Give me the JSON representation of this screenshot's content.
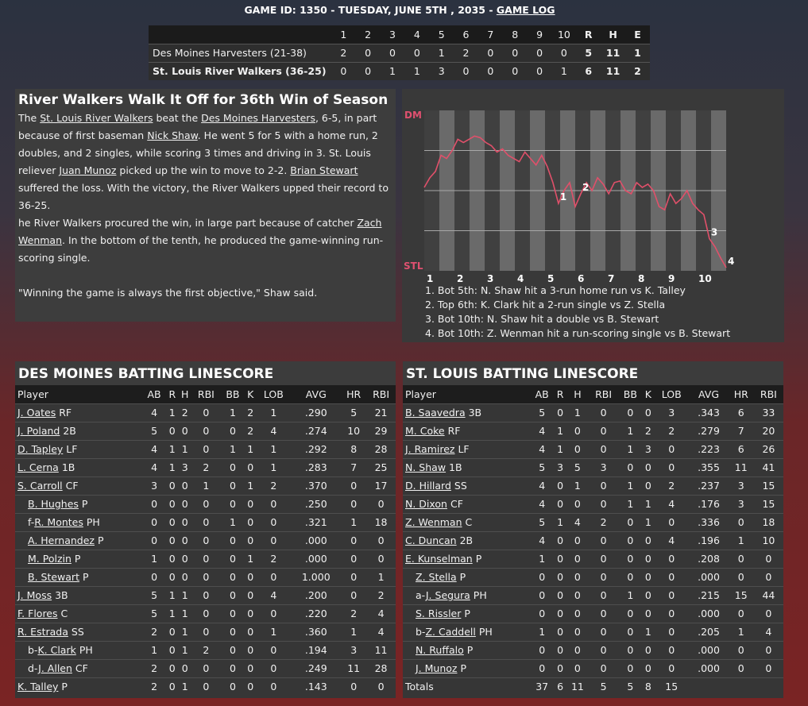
{
  "header": {
    "title": "GAME ID: 1350 - TUESDAY, JUNE 5TH , 2035 - ",
    "log_link": "GAME LOG"
  },
  "linescore": {
    "innings": [
      "1",
      "2",
      "3",
      "4",
      "5",
      "6",
      "7",
      "8",
      "9",
      "10"
    ],
    "totals_headers": [
      "R",
      "H",
      "E"
    ],
    "teams": [
      {
        "name": "Des Moines Harvesters (21-38)",
        "bold": false,
        "innings": [
          "2",
          "0",
          "0",
          "0",
          "1",
          "2",
          "0",
          "0",
          "0",
          "0"
        ],
        "totals": [
          "5",
          "11",
          "1"
        ]
      },
      {
        "name": "St. Louis River Walkers (36-25)",
        "bold": true,
        "innings": [
          "0",
          "0",
          "1",
          "1",
          "3",
          "0",
          "0",
          "0",
          "0",
          "1"
        ],
        "totals": [
          "6",
          "11",
          "2"
        ]
      }
    ]
  },
  "story": {
    "headline": "River Walkers Walk It Off for 36th Win of Season",
    "p1": {
      "t1": "The ",
      "l1": "St. Louis River Walkers",
      "t2": " beat the ",
      "l2": "Des Moines Harvesters",
      "t3": ", 6-5, in part because of first baseman ",
      "l3": "Nick Shaw",
      "t4": ". He went 5 for 5 with a home run, 2 doubles, and 2 singles, while scoring 3 times and driving in 3. St. Louis reliever ",
      "l4": "Juan Munoz",
      "t5": " picked up the win to move to 2-2. ",
      "l5": "Brian Stewart",
      "t6": " suffered the loss. With the victory, the River Walkers upped their record to 36-25."
    },
    "p2": {
      "t1": "he River Walkers procured the win, in large part because of catcher ",
      "l1": "Zach Wenman",
      "t2": ". In the bottom of the tenth, he produced the game-winning run-scoring single."
    },
    "quote": "\"Winning the game is always the first objective,\" Shaw said."
  },
  "win_probability": {
    "top_label": "DM",
    "bottom_label": "STL",
    "inning_labels": [
      "1",
      "2",
      "3",
      "4",
      "5",
      "6",
      "7",
      "8",
      "9",
      "10"
    ],
    "markers": [
      "1",
      "2",
      "3",
      "4"
    ],
    "line_color": "#e0506a",
    "points": [
      0.52,
      0.58,
      0.62,
      0.72,
      0.7,
      0.75,
      0.82,
      0.8,
      0.82,
      0.84,
      0.83,
      0.8,
      0.78,
      0.74,
      0.76,
      0.72,
      0.7,
      0.68,
      0.74,
      0.7,
      0.66,
      0.72,
      0.65,
      0.55,
      0.42,
      0.5,
      0.55,
      0.4,
      0.48,
      0.55,
      0.5,
      0.58,
      0.54,
      0.48,
      0.55,
      0.56,
      0.5,
      0.48,
      0.55,
      0.52,
      0.54,
      0.5,
      0.4,
      0.38,
      0.48,
      0.42,
      0.45,
      0.5,
      0.42,
      0.38,
      0.35,
      0.2,
      0.15,
      0.08,
      0.02
    ],
    "legend": [
      "1. Bot 5th: N. Shaw hit a 3-run home run vs K. Talley",
      "2. Top 6th: K. Clark hit a 2-run single vs Z. Stella",
      "3. Bot 10th: N. Shaw hit a double vs B. Stewart",
      "4. Bot 10th: Z. Wenman hit a run-scoring single vs B. Stewart"
    ]
  },
  "columns": [
    "Player",
    "AB",
    "R",
    "H",
    "RBI",
    "BB",
    "K",
    "LOB",
    "AVG",
    "HR",
    "RBI"
  ],
  "dm_batting": {
    "title": "DES MOINES BATTING LINESCORE",
    "rows": [
      {
        "name": "J. Oates",
        "pos": "RF",
        "sub": false,
        "stats": [
          "4",
          "1",
          "2",
          "0",
          "1",
          "2",
          "1",
          ".290",
          "5",
          "21"
        ]
      },
      {
        "name": "J. Poland",
        "pos": "2B",
        "sub": false,
        "stats": [
          "5",
          "0",
          "0",
          "0",
          "0",
          "2",
          "4",
          ".274",
          "10",
          "29"
        ]
      },
      {
        "name": "D. Tapley",
        "pos": "LF",
        "sub": false,
        "stats": [
          "4",
          "1",
          "1",
          "0",
          "1",
          "1",
          "1",
          ".292",
          "8",
          "28"
        ]
      },
      {
        "name": "L. Cerna",
        "pos": "1B",
        "sub": false,
        "stats": [
          "4",
          "1",
          "3",
          "2",
          "0",
          "0",
          "1",
          ".283",
          "7",
          "25"
        ]
      },
      {
        "name": "S. Carroll",
        "pos": "CF",
        "sub": false,
        "stats": [
          "3",
          "0",
          "0",
          "1",
          "0",
          "1",
          "2",
          ".370",
          "0",
          "17"
        ]
      },
      {
        "name": "B. Hughes",
        "pos": "P",
        "sub": true,
        "prefix": "",
        "stats": [
          "0",
          "0",
          "0",
          "0",
          "0",
          "0",
          "0",
          ".250",
          "0",
          "0"
        ]
      },
      {
        "name": "R. Montes",
        "pos": "PH",
        "sub": true,
        "prefix": "f-",
        "stats": [
          "0",
          "0",
          "0",
          "0",
          "1",
          "0",
          "0",
          ".321",
          "1",
          "18"
        ]
      },
      {
        "name": "A. Hernandez",
        "pos": "P",
        "sub": true,
        "prefix": "",
        "stats": [
          "0",
          "0",
          "0",
          "0",
          "0",
          "0",
          "0",
          ".000",
          "0",
          "0"
        ]
      },
      {
        "name": "M. Polzin",
        "pos": "P",
        "sub": true,
        "prefix": "",
        "stats": [
          "1",
          "0",
          "0",
          "0",
          "0",
          "1",
          "2",
          ".000",
          "0",
          "0"
        ]
      },
      {
        "name": "B. Stewart",
        "pos": "P",
        "sub": true,
        "prefix": "",
        "stats": [
          "0",
          "0",
          "0",
          "0",
          "0",
          "0",
          "0",
          "1.000",
          "0",
          "1"
        ]
      },
      {
        "name": "J. Moss",
        "pos": "3B",
        "sub": false,
        "stats": [
          "5",
          "1",
          "1",
          "0",
          "0",
          "0",
          "4",
          ".200",
          "0",
          "2"
        ]
      },
      {
        "name": "F. Flores",
        "pos": "C",
        "sub": false,
        "stats": [
          "5",
          "1",
          "1",
          "0",
          "0",
          "0",
          "0",
          ".220",
          "2",
          "4"
        ]
      },
      {
        "name": "R. Estrada",
        "pos": "SS",
        "sub": false,
        "stats": [
          "2",
          "0",
          "1",
          "0",
          "0",
          "0",
          "1",
          ".360",
          "1",
          "4"
        ]
      },
      {
        "name": "K. Clark",
        "pos": "PH",
        "sub": true,
        "prefix": "b-",
        "stats": [
          "1",
          "0",
          "1",
          "2",
          "0",
          "0",
          "0",
          ".194",
          "3",
          "11"
        ]
      },
      {
        "name": "J. Allen",
        "pos": "CF",
        "sub": true,
        "prefix": "d-",
        "stats": [
          "2",
          "0",
          "0",
          "0",
          "0",
          "0",
          "0",
          ".249",
          "11",
          "28"
        ]
      },
      {
        "name": "K. Talley",
        "pos": "P",
        "sub": false,
        "stats": [
          "2",
          "0",
          "1",
          "0",
          "0",
          "0",
          "0",
          ".143",
          "0",
          "0"
        ]
      }
    ]
  },
  "stl_batting": {
    "title": "ST. LOUIS BATTING LINESCORE",
    "rows": [
      {
        "name": "B. Saavedra",
        "pos": "3B",
        "sub": false,
        "stats": [
          "5",
          "0",
          "1",
          "0",
          "0",
          "0",
          "3",
          ".343",
          "6",
          "33"
        ]
      },
      {
        "name": "M. Coke",
        "pos": "RF",
        "sub": false,
        "stats": [
          "4",
          "1",
          "0",
          "0",
          "1",
          "2",
          "2",
          ".279",
          "7",
          "20"
        ]
      },
      {
        "name": "J. Ramirez",
        "pos": "LF",
        "sub": false,
        "stats": [
          "4",
          "1",
          "0",
          "0",
          "1",
          "3",
          "0",
          ".223",
          "6",
          "26"
        ]
      },
      {
        "name": "N. Shaw",
        "pos": "1B",
        "sub": false,
        "stats": [
          "5",
          "3",
          "5",
          "3",
          "0",
          "0",
          "0",
          ".355",
          "11",
          "41"
        ]
      },
      {
        "name": "D. Hillard",
        "pos": "SS",
        "sub": false,
        "stats": [
          "4",
          "0",
          "1",
          "0",
          "1",
          "0",
          "2",
          ".237",
          "3",
          "15"
        ]
      },
      {
        "name": "N. Dixon",
        "pos": "CF",
        "sub": false,
        "stats": [
          "4",
          "0",
          "0",
          "0",
          "1",
          "1",
          "4",
          ".176",
          "3",
          "15"
        ]
      },
      {
        "name": "Z. Wenman",
        "pos": "C",
        "sub": false,
        "stats": [
          "5",
          "1",
          "4",
          "2",
          "0",
          "1",
          "0",
          ".336",
          "0",
          "18"
        ]
      },
      {
        "name": "C. Duncan",
        "pos": "2B",
        "sub": false,
        "stats": [
          "4",
          "0",
          "0",
          "0",
          "0",
          "0",
          "4",
          ".196",
          "1",
          "10"
        ]
      },
      {
        "name": "E. Kunselman",
        "pos": "P",
        "sub": false,
        "stats": [
          "1",
          "0",
          "0",
          "0",
          "0",
          "0",
          "0",
          ".208",
          "0",
          "0"
        ]
      },
      {
        "name": "Z. Stella",
        "pos": "P",
        "sub": true,
        "prefix": "",
        "stats": [
          "0",
          "0",
          "0",
          "0",
          "0",
          "0",
          "0",
          ".000",
          "0",
          "0"
        ]
      },
      {
        "name": "J. Segura",
        "pos": "PH",
        "sub": true,
        "prefix": "a-",
        "stats": [
          "0",
          "0",
          "0",
          "0",
          "1",
          "0",
          "0",
          ".215",
          "15",
          "44"
        ]
      },
      {
        "name": "S. Rissler",
        "pos": "P",
        "sub": true,
        "prefix": "",
        "stats": [
          "0",
          "0",
          "0",
          "0",
          "0",
          "0",
          "0",
          ".000",
          "0",
          "0"
        ]
      },
      {
        "name": "Z. Caddell",
        "pos": "PH",
        "sub": true,
        "prefix": "b-",
        "stats": [
          "1",
          "0",
          "0",
          "0",
          "0",
          "1",
          "0",
          ".205",
          "1",
          "4"
        ]
      },
      {
        "name": "N. Ruffalo",
        "pos": "P",
        "sub": true,
        "prefix": "",
        "stats": [
          "0",
          "0",
          "0",
          "0",
          "0",
          "0",
          "0",
          ".000",
          "0",
          "0"
        ]
      },
      {
        "name": "J. Munoz",
        "pos": "P",
        "sub": true,
        "prefix": "",
        "stats": [
          "0",
          "0",
          "0",
          "0",
          "0",
          "0",
          "0",
          ".000",
          "0",
          "0"
        ]
      }
    ],
    "totals_label": "Totals",
    "totals": [
      "37",
      "6",
      "11",
      "5",
      "5",
      "8",
      "15",
      "",
      "",
      ""
    ]
  }
}
